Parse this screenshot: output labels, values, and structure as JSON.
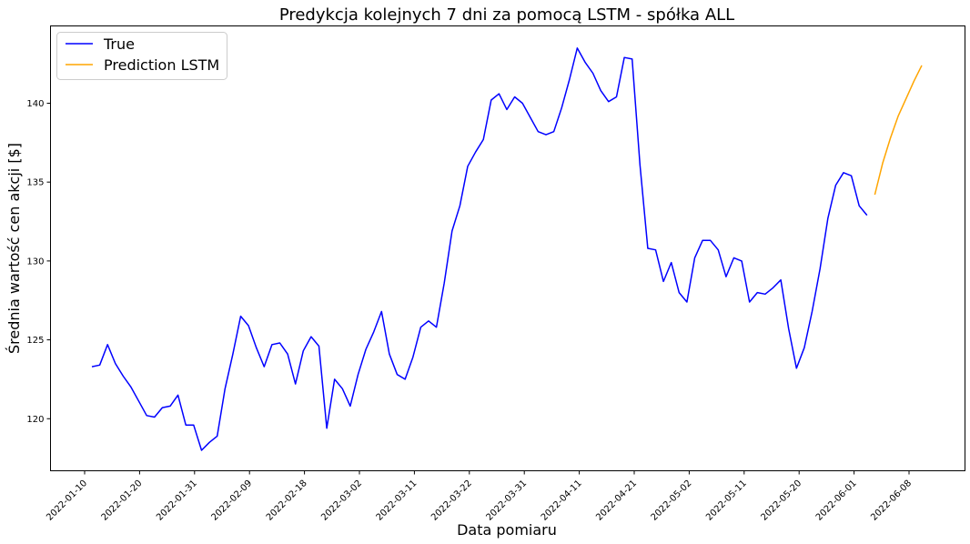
{
  "chart_data": {
    "type": "line",
    "title": "Predykcja kolejnych 7 dni za pomocą LSTM - spółka ALL",
    "xlabel": "Data pomiaru",
    "ylabel": "Średnia wartość cen akcji [$]",
    "ylim": [
      116.7,
      144.9
    ],
    "yticks": [
      120,
      125,
      130,
      135,
      140
    ],
    "xticks": [
      "2022-01-10",
      "2022-01-20",
      "2022-01-31",
      "2022-02-09",
      "2022-02-18",
      "2022-03-02",
      "2022-03-11",
      "2022-03-22",
      "2022-03-31",
      "2022-04-11",
      "2022-04-21",
      "2022-05-02",
      "2022-05-11",
      "2022-05-20",
      "2022-06-01",
      "2022-06-08"
    ],
    "legend_position": "top-left",
    "series": [
      {
        "name": "True",
        "color": "#0000ff",
        "values": [
          123.3,
          123.4,
          124.7,
          123.5,
          122.7,
          122.0,
          121.1,
          120.2,
          120.1,
          120.7,
          120.8,
          121.5,
          119.6,
          119.6,
          118.0,
          118.5,
          118.9,
          121.9,
          124.1,
          126.5,
          125.9,
          124.5,
          123.3,
          124.7,
          124.8,
          124.1,
          122.2,
          124.3,
          125.2,
          124.6,
          119.4,
          122.5,
          121.9,
          120.8,
          122.8,
          124.4,
          125.5,
          126.8,
          124.1,
          122.8,
          122.5,
          123.9,
          125.8,
          126.2,
          125.8,
          128.6,
          131.9,
          133.5,
          136.0,
          136.9,
          137.7,
          140.2,
          140.6,
          139.6,
          140.4,
          140.0,
          139.1,
          138.2,
          138.0,
          138.2,
          139.7,
          141.5,
          143.5,
          142.6,
          141.9,
          140.8,
          140.1,
          140.4,
          142.9,
          142.8,
          136.1,
          130.8,
          130.7,
          128.7,
          129.9,
          128.0,
          127.4,
          130.2,
          131.3,
          131.3,
          130.7,
          129.0,
          130.2,
          130.0,
          127.4,
          128.0,
          127.9,
          128.3,
          128.8,
          125.7,
          123.2,
          124.5,
          126.8,
          129.5,
          132.7,
          134.8,
          135.6,
          135.4,
          133.5,
          132.9
        ]
      },
      {
        "name": "Prediction LSTM",
        "color": "#ffa500",
        "values": [
          134.2,
          136.2,
          137.8,
          139.2,
          140.3,
          141.4,
          142.4
        ]
      }
    ]
  }
}
